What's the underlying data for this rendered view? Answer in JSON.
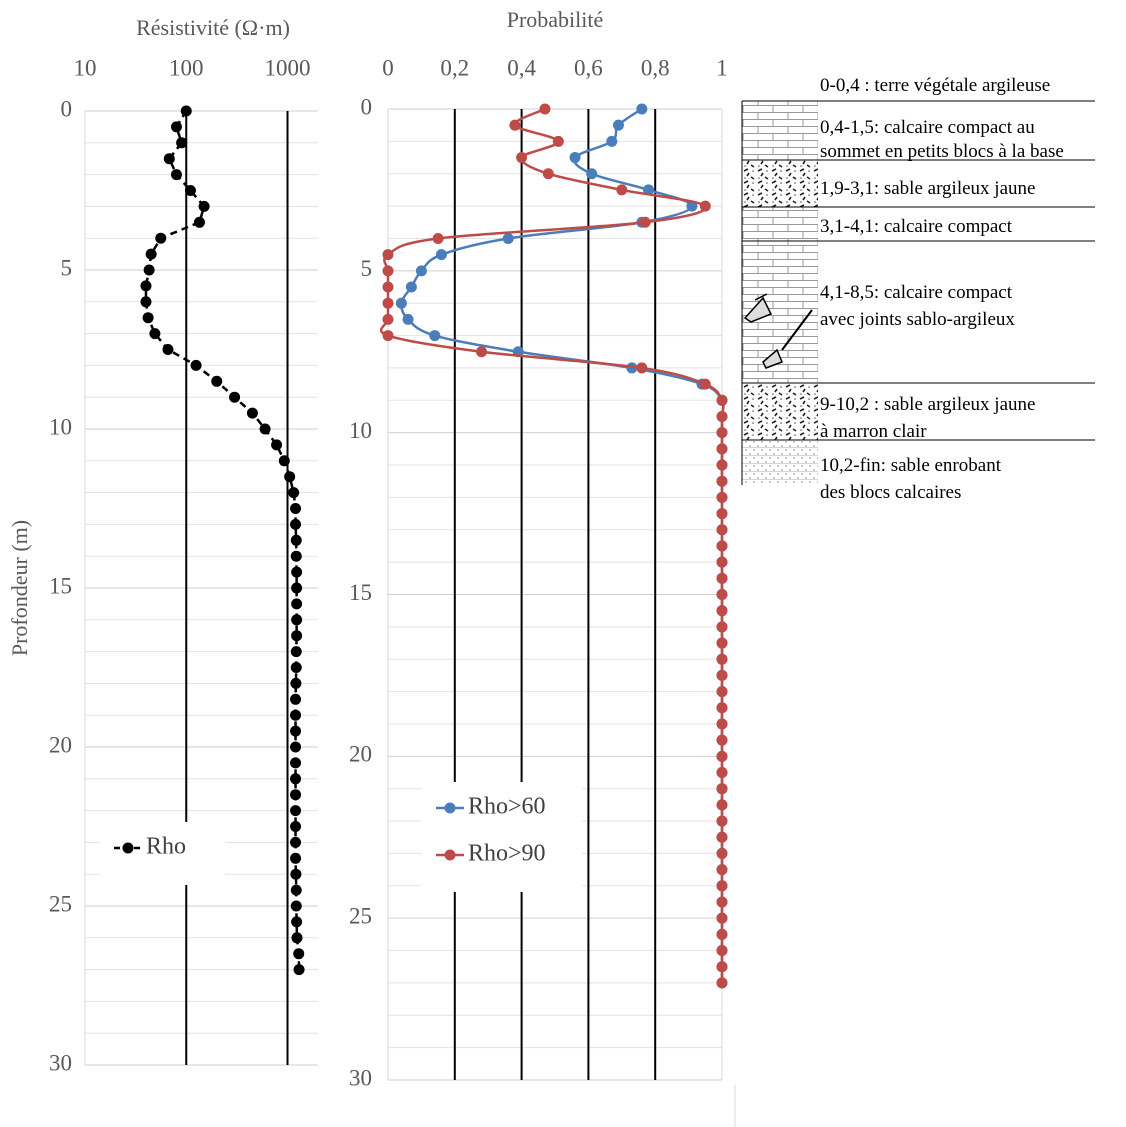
{
  "chart_data": [
    {
      "type": "line",
      "x_label": "Résistivité (Ω·m)",
      "y_label": "Profondeur (m)",
      "x_scale": "log",
      "xlim": [
        10,
        2000
      ],
      "xticks": [
        10,
        100,
        1000
      ],
      "ylim": [
        0,
        30
      ],
      "yticks": [
        0,
        5,
        10,
        15,
        20,
        25,
        30
      ],
      "minor_yticks": [
        1,
        2,
        3,
        4,
        6,
        7,
        8,
        9,
        11,
        12,
        13,
        14,
        16,
        17,
        18,
        19,
        21,
        22,
        23,
        24,
        26,
        27,
        28,
        29
      ],
      "y_inverted": true,
      "grid": true,
      "legend": "lower left",
      "smooth": false,
      "depths": [
        0,
        0.5,
        1,
        1.5,
        2,
        2.5,
        3,
        3.5,
        4,
        4.5,
        5,
        5.5,
        6,
        6.5,
        7,
        7.5,
        8,
        8.5,
        9,
        9.5,
        10,
        10.5,
        11,
        11.5,
        12,
        12.5,
        13,
        13.5,
        14,
        14.5,
        15,
        15.5,
        16,
        16.5,
        17,
        17.5,
        18,
        18.5,
        19,
        19.5,
        20,
        20.5,
        21,
        21.5,
        22,
        22.5,
        23,
        23.5,
        24,
        24.5,
        25,
        25.5,
        26,
        26.5,
        27
      ],
      "series": [
        {
          "name": "Rho",
          "color": "#000000",
          "line_style": "dashed",
          "values": [
            100,
            80,
            90,
            68,
            80,
            110,
            150,
            135,
            56,
            45,
            43,
            40,
            40,
            42,
            49,
            66,
            125,
            200,
            300,
            450,
            600,
            780,
            930,
            1050,
            1150,
            1200,
            1200,
            1220,
            1220,
            1230,
            1230,
            1230,
            1230,
            1230,
            1220,
            1220,
            1210,
            1200,
            1200,
            1200,
            1200,
            1200,
            1200,
            1200,
            1200,
            1200,
            1200,
            1200,
            1210,
            1220,
            1220,
            1230,
            1240,
            1290,
            1300
          ]
        }
      ]
    },
    {
      "type": "line",
      "x_label": "Probabilité",
      "xlim": [
        0,
        1
      ],
      "xticks": [
        0,
        {
          "value": 0.2,
          "label": "0,2"
        },
        {
          "value": 0.4,
          "label": "0,4"
        },
        {
          "value": 0.6,
          "label": "0,6"
        },
        {
          "value": 0.8,
          "label": "0,8"
        },
        1
      ],
      "ylim": [
        0,
        30
      ],
      "yticks": [
        0,
        5,
        10,
        15,
        20,
        25,
        30
      ],
      "minor_yticks": [
        1,
        2,
        3,
        4,
        6,
        7,
        8,
        9,
        11,
        12,
        13,
        14,
        16,
        17,
        18,
        19,
        21,
        22,
        23,
        24,
        26,
        27,
        28,
        29
      ],
      "y_inverted": true,
      "grid": true,
      "legend": "lower left",
      "smooth": true,
      "depths": [
        0,
        0.5,
        1,
        1.5,
        2,
        2.5,
        3,
        3.5,
        4,
        4.5,
        5,
        5.5,
        6,
        6.5,
        7,
        7.5,
        8,
        8.5,
        9,
        9.5,
        10,
        10.5,
        11,
        11.5,
        12,
        12.5,
        13,
        13.5,
        14,
        14.5,
        15,
        15.5,
        16,
        16.5,
        17,
        17.5,
        18,
        18.5,
        19,
        19.5,
        20,
        20.5,
        21,
        21.5,
        22,
        22.5,
        23,
        23.5,
        24,
        24.5,
        25,
        25.5,
        26,
        26.5,
        27
      ],
      "series": [
        {
          "name": "Rho>60",
          "color": "#4a7ebb",
          "line_style": "solid",
          "values": [
            0.76,
            0.69,
            0.67,
            0.56,
            0.61,
            0.78,
            0.91,
            0.76,
            0.36,
            0.16,
            0.1,
            0.07,
            0.04,
            0.06,
            0.14,
            0.39,
            0.73,
            0.94,
            1,
            1,
            1,
            1,
            1,
            1,
            1,
            1,
            1,
            1,
            1,
            1,
            1,
            1,
            1,
            1,
            1,
            1,
            1,
            1,
            1,
            1,
            1,
            1,
            1,
            1,
            1,
            1,
            1,
            1,
            1,
            1,
            1,
            1,
            1,
            1,
            1
          ]
        },
        {
          "name": "Rho>90",
          "color": "#be4b48",
          "line_style": "solid",
          "values": [
            0.47,
            0.38,
            0.51,
            0.4,
            0.48,
            0.7,
            0.95,
            0.77,
            0.15,
            0,
            0,
            0,
            0,
            0,
            0,
            0.28,
            0.76,
            0.95,
            1,
            1,
            1,
            1,
            1,
            1,
            1,
            1,
            1,
            1,
            1,
            1,
            1,
            1,
            1,
            1,
            1,
            1,
            1,
            1,
            1,
            1,
            1,
            1,
            1,
            1,
            1,
            1,
            1,
            1,
            1,
            1,
            1,
            1,
            1,
            1,
            1
          ]
        }
      ]
    }
  ],
  "lithology": {
    "layers": [
      {
        "lines": [
          "0-0,4 : terre végétale argileuse"
        ]
      },
      {
        "lines": [
          "0,4-1,5: calcaire compact au",
          "sommet en petits blocs à la base"
        ]
      },
      {
        "lines": [
          "1,9-3,1: sable argileux jaune"
        ]
      },
      {
        "lines": [
          "3,1-4,1: calcaire compact"
        ]
      },
      {
        "lines": [
          "4,1-8,5: calcaire compact",
          "avec joints sablo-argileux"
        ]
      },
      {
        "lines": [
          "9-10,2 : sable argileux jaune",
          "à marron clair"
        ]
      },
      {
        "lines": [
          "10,2-fin: sable enrobant",
          "des blocs calcaires"
        ]
      }
    ]
  }
}
